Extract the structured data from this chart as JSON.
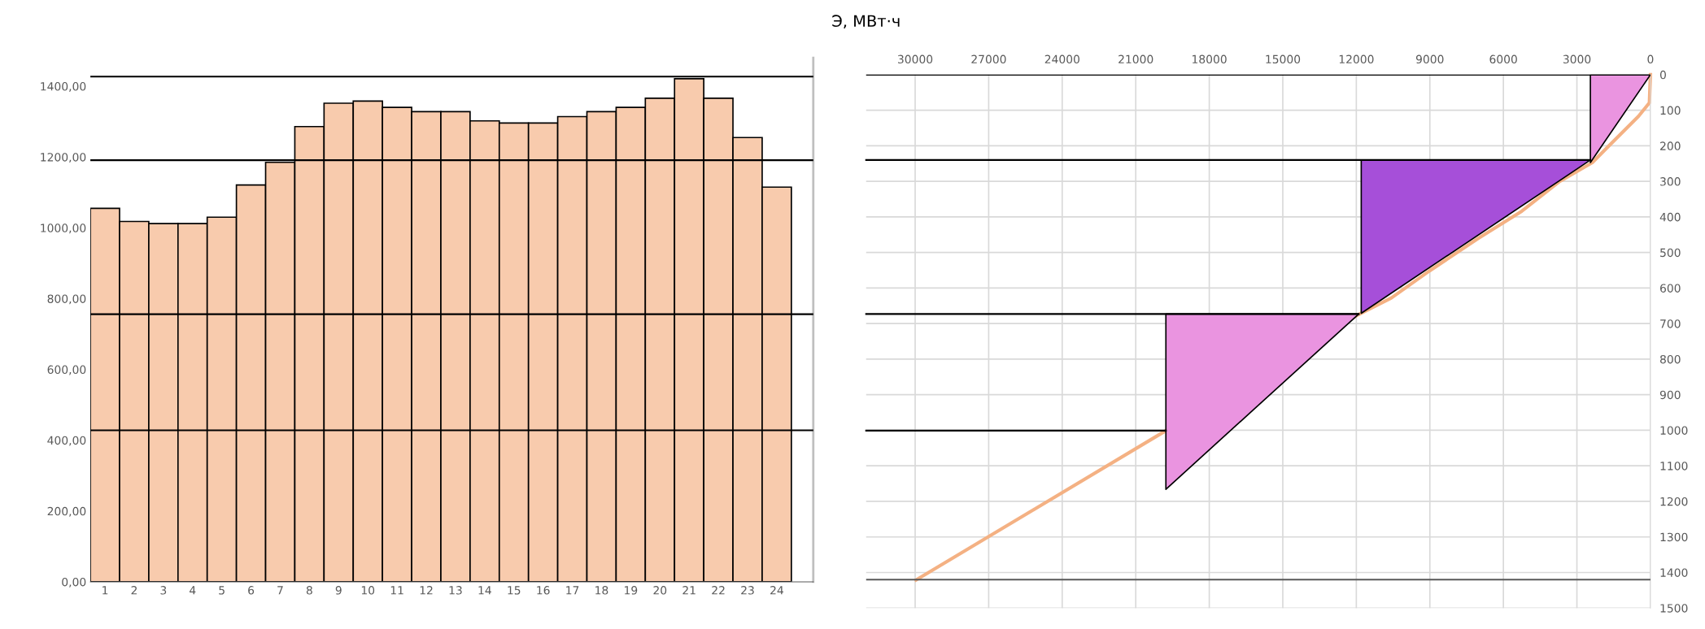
{
  "chart_data": [
    {
      "type": "bar",
      "categories": [
        "1",
        "2",
        "3",
        "4",
        "5",
        "6",
        "7",
        "8",
        "9",
        "10",
        "11",
        "12",
        "13",
        "14",
        "15",
        "16",
        "17",
        "18",
        "19",
        "20",
        "21",
        "22",
        "23",
        "24"
      ],
      "values": [
        1055,
        1018,
        1012,
        1012,
        1030,
        1121,
        1185,
        1286,
        1352,
        1358,
        1340,
        1328,
        1328,
        1302,
        1296,
        1296,
        1314,
        1328,
        1340,
        1366,
        1421,
        1366,
        1255,
        1115
      ],
      "color": "#f8cbad",
      "ylim": [
        0,
        1480
      ],
      "yticks": [
        {
          "value": 0,
          "label": "0,00"
        },
        {
          "value": 200,
          "label": "200,00"
        },
        {
          "value": 400,
          "label": "400,00"
        },
        {
          "value": 600,
          "label": "600,00"
        },
        {
          "value": 800,
          "label": "800,00"
        },
        {
          "value": 1000,
          "label": "1000,00"
        },
        {
          "value": 1200,
          "label": "1200,00"
        },
        {
          "value": 1400,
          "label": "1400,00"
        }
      ],
      "ref_lines": [
        {
          "axis": "y",
          "value": 1427,
          "color": "#000000"
        },
        {
          "axis": "y",
          "value": 1191,
          "color": "#000000"
        },
        {
          "axis": "y",
          "value": 756,
          "color": "#000000"
        },
        {
          "axis": "y",
          "value": 428,
          "color": "#000000"
        }
      ],
      "grid": false,
      "legend": false
    },
    {
      "type": "line",
      "xlabel": "Э, МВт·ч",
      "series": [
        {
          "type": "line",
          "color": "#f4b183",
          "x": [
            0,
            43,
            485,
            1040,
            1704,
            2369,
            3701,
            5253,
            7023,
            9020,
            10571,
            11900,
            19767,
            29963
          ],
          "values": [
            0,
            79,
            117,
            155,
            201,
            247,
            300,
            384,
            460,
            552,
            628,
            674,
            1001,
            1421
          ]
        },
        {
          "type": "area",
          "color": "#ea94e0",
          "x": [
            2450,
            0,
            2450
          ],
          "values": [
            0,
            0,
            247
          ]
        },
        {
          "type": "area",
          "color": "#a64fd9",
          "x": [
            11800,
            2450,
            11800
          ],
          "values": [
            240,
            240,
            671
          ]
        },
        {
          "type": "area",
          "color": "#ea94e0",
          "x": [
            19770,
            11900,
            19770
          ],
          "values": [
            673,
            673,
            1166
          ]
        },
        {
          "type": "line",
          "color": "#000000",
          "x": [
            32000,
            2450
          ],
          "values": [
            240,
            240
          ]
        },
        {
          "type": "line",
          "color": "#000000",
          "x": [
            32000,
            11900
          ],
          "values": [
            673,
            673
          ]
        },
        {
          "type": "line",
          "color": "#000000",
          "x": [
            32000,
            19770
          ],
          "values": [
            1001,
            1001
          ]
        }
      ],
      "xlim": [
        32000,
        0
      ],
      "ylim": [
        1500,
        0
      ],
      "xticks": [
        30000,
        27000,
        24000,
        21000,
        18000,
        15000,
        12000,
        9000,
        6000,
        3000,
        0
      ],
      "yticks": [
        0,
        100,
        200,
        300,
        400,
        500,
        600,
        700,
        800,
        900,
        1000,
        1100,
        1200,
        1300,
        1400,
        1500
      ],
      "ref_lines": [
        {
          "axis": "y",
          "value": 0,
          "color": "#000000"
        },
        {
          "axis": "y",
          "value": 1420,
          "color": "#595959"
        }
      ],
      "grid": true,
      "legend": false
    }
  ]
}
